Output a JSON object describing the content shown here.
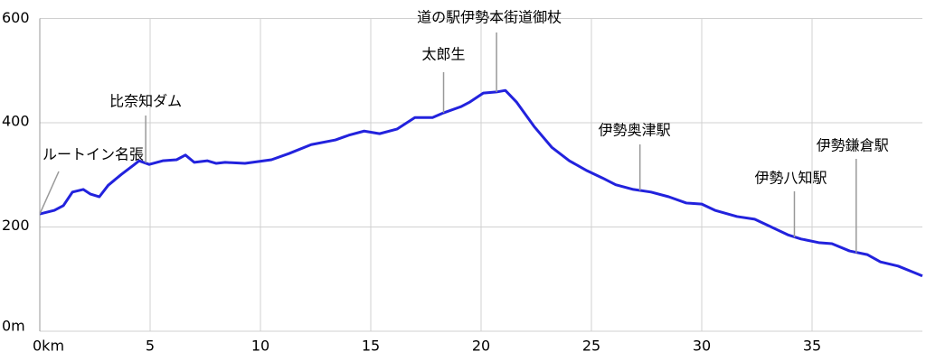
{
  "chart_data": {
    "type": "line",
    "x": [
      0,
      0.66,
      1.07,
      1.48,
      1.97,
      2.3,
      2.7,
      3.1,
      3.7,
      4.26,
      4.5,
      4.96,
      5.57,
      6.2,
      6.6,
      7.0,
      7.6,
      8.0,
      8.4,
      9.3,
      10.5,
      11.3,
      12.3,
      13.4,
      14.0,
      14.7,
      15.4,
      16.2,
      17.0,
      17.8,
      18.3,
      19.1,
      19.5,
      20.1,
      20.7,
      21.1,
      21.6,
      22.4,
      23.2,
      24.0,
      24.8,
      25.5,
      26.1,
      26.9,
      27.7,
      28.5,
      29.3,
      30.0,
      30.6,
      31.6,
      32.4,
      33.0,
      33.9,
      34.5,
      35.3,
      35.9,
      36.7,
      37.5,
      38.1,
      38.9,
      39.6,
      40.0
    ],
    "values": [
      225,
      232,
      241,
      267,
      272,
      263,
      258,
      280,
      301,
      319,
      327,
      320,
      327,
      329,
      338,
      324,
      327,
      322,
      324,
      322,
      329,
      341,
      358,
      367,
      376,
      384,
      379,
      388,
      410,
      410,
      419,
      431,
      440,
      457,
      459,
      462,
      440,
      393,
      353,
      327,
      308,
      294,
      281,
      272,
      267,
      258,
      246,
      244,
      232,
      220,
      215,
      203,
      185,
      177,
      170,
      168,
      154,
      147,
      133,
      125,
      113,
      106
    ],
    "color": "#2222dd",
    "xlim": [
      0,
      40
    ],
    "ylim": [
      0,
      600
    ],
    "xticks": [
      {
        "value": 0,
        "label": "0km"
      },
      5,
      10,
      15,
      20,
      25,
      30,
      35
    ],
    "yticks": [
      {
        "value": 0,
        "label": "0m"
      },
      200,
      400,
      600
    ],
    "grid": true,
    "annotations": [
      {
        "text": "ルートイン名張",
        "x": 0,
        "y": 225
      },
      {
        "text": "比奈知ダム",
        "x": 4.8,
        "y": 323
      },
      {
        "text": "太郎生",
        "x": 18.3,
        "y": 419
      },
      {
        "text": "道の駅伊勢本街道御杖",
        "x": 20.7,
        "y": 459
      },
      {
        "text": "伊勢奥津駅",
        "x": 27.2,
        "y": 270
      },
      {
        "text": "伊勢八知駅",
        "x": 34.2,
        "y": 180
      },
      {
        "text": "伊勢鎌倉駅",
        "x": 37.0,
        "y": 150
      }
    ]
  }
}
